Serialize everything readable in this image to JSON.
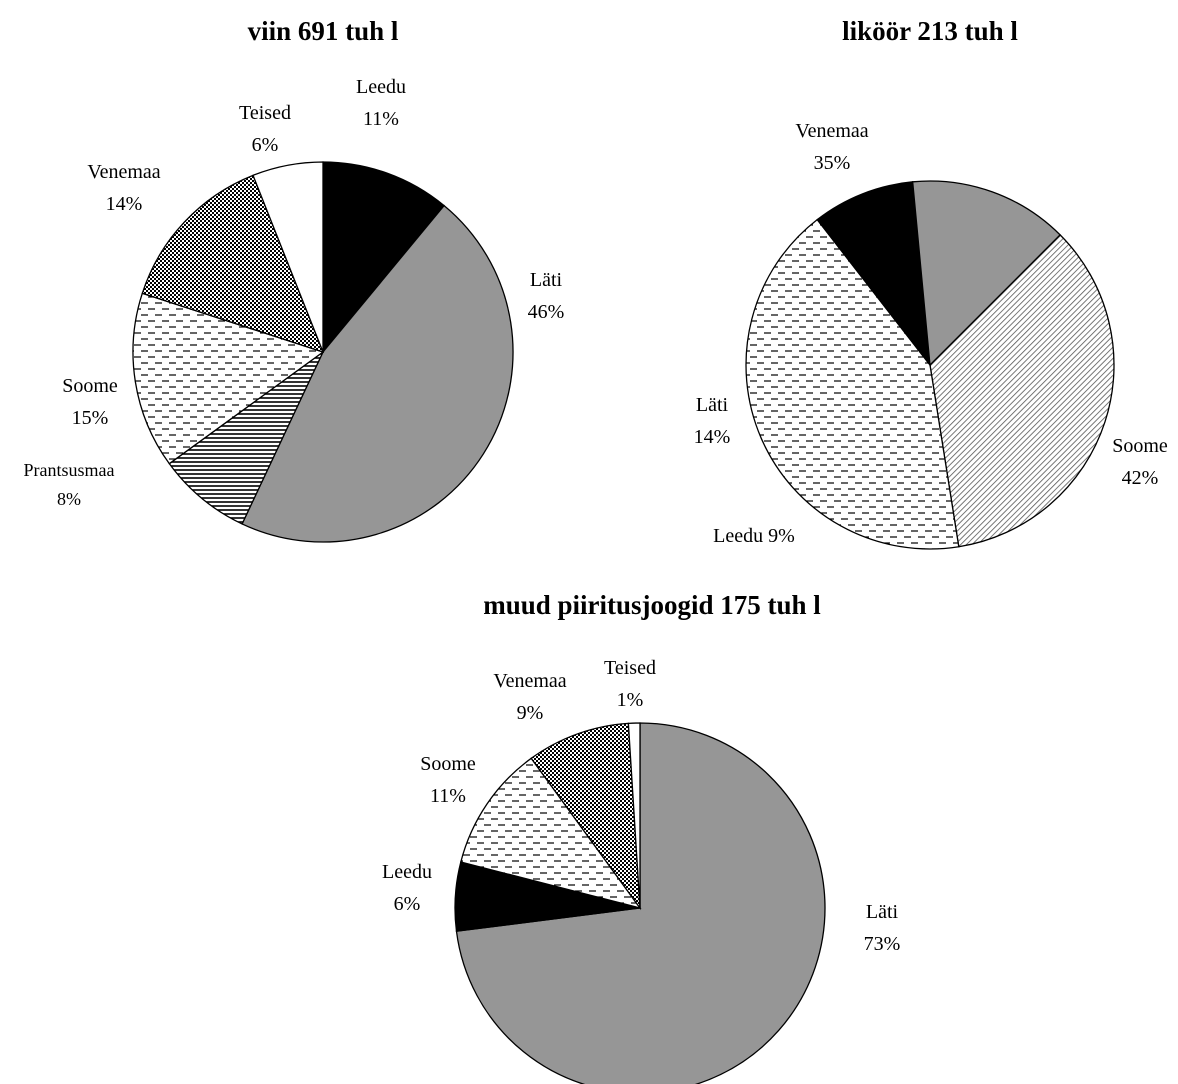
{
  "chart_data": [
    {
      "type": "pie",
      "title": "viin 691 tuh l",
      "slices": [
        {
          "label": "Leedu",
          "value": 11,
          "pct_label": "11%",
          "fill": "black"
        },
        {
          "label": "Läti",
          "value": 46,
          "pct_label": "46%",
          "fill": "gray"
        },
        {
          "label": "Prantsusmaa",
          "value": 8,
          "pct_label": "8%",
          "fill": "hlines"
        },
        {
          "label": "Soome",
          "value": 15,
          "pct_label": "15%",
          "fill": "dashes"
        },
        {
          "label": "Venemaa",
          "value": 14,
          "pct_label": "14%",
          "fill": "checker"
        },
        {
          "label": "Teised",
          "value": 6,
          "pct_label": "6%",
          "fill": "white"
        }
      ]
    },
    {
      "type": "pie",
      "title": "liköör 213 tuh l",
      "slices": [
        {
          "label": "Venemaa",
          "value": 35,
          "pct_label": "35%",
          "fill": "diag"
        },
        {
          "label": "Soome",
          "value": 42,
          "pct_label": "42%",
          "fill": "dashes"
        },
        {
          "label": "Leedu",
          "value": 9,
          "pct_label": "9%",
          "fill": "black"
        },
        {
          "label": "Läti",
          "value": 14,
          "pct_label": "14%",
          "fill": "gray"
        }
      ]
    },
    {
      "type": "pie",
      "title": "muud piiritusjoogid 175 tuh l",
      "slices": [
        {
          "label": "Läti",
          "value": 73,
          "pct_label": "73%",
          "fill": "gray"
        },
        {
          "label": "Leedu",
          "value": 6,
          "pct_label": "6%",
          "fill": "black"
        },
        {
          "label": "Soome",
          "value": 11,
          "pct_label": "11%",
          "fill": "dashes"
        },
        {
          "label": "Venemaa",
          "value": 9,
          "pct_label": "9%",
          "fill": "checker"
        },
        {
          "label": "Teised",
          "value": 1,
          "pct_label": "1%",
          "fill": "white"
        }
      ]
    }
  ]
}
